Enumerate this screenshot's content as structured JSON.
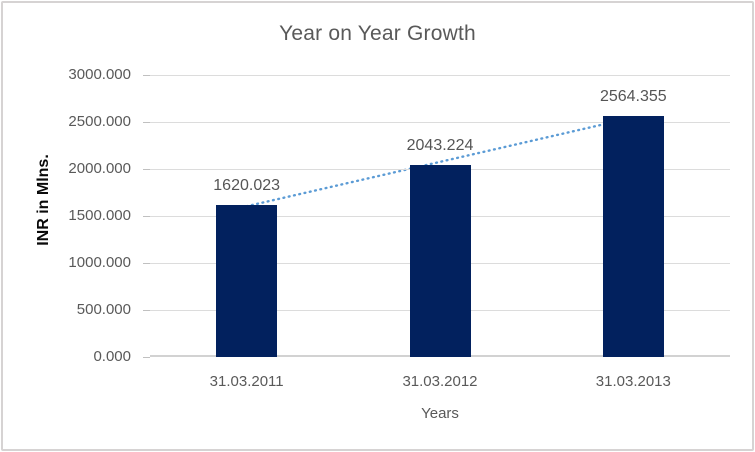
{
  "chart_data": {
    "type": "bar",
    "title": "Year on Year Growth",
    "xlabel": "Years",
    "ylabel": "INR in Mlns.",
    "categories": [
      "31.03.2011",
      "31.03.2012",
      "31.03.2013"
    ],
    "values": [
      1620.023,
      2043.224,
      2564.355
    ],
    "data_labels": [
      "1620.023",
      "2043.224",
      "2564.355"
    ],
    "y_ticks": [
      "0.000",
      "500.000",
      "1000.000",
      "1500.000",
      "2000.000",
      "2500.000",
      "3000.000"
    ],
    "ylim": [
      0,
      3000
    ],
    "grid": true,
    "legend": "none",
    "trendline": {
      "type": "linear",
      "style": "dotted",
      "color": "#5b9bd5"
    },
    "colors": {
      "bar": "#02215e",
      "gridline": "#dcdcdc",
      "axis_line": "#d2d2d2",
      "tick_text": "#595959",
      "title_text": "#595959",
      "data_label_text": "#555555",
      "axis_title_text": "#0a0a0a",
      "frame_border": "#d6d3d3",
      "background": "#ffffff"
    }
  }
}
